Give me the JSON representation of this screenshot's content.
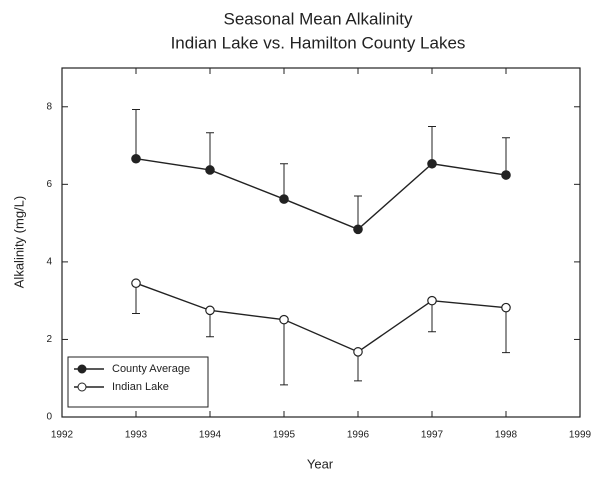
{
  "chart_data": {
    "type": "line",
    "title": "Seasonal Mean Alkalinity",
    "subtitle": "Indian Lake vs. Hamilton County Lakes",
    "x_label": "Year",
    "y_label": "Alkalinity (mg/L)",
    "x": [
      1993,
      1994,
      1995,
      1996,
      1997,
      1998
    ],
    "xlim": [
      1992,
      1999
    ],
    "xticks": [
      1992,
      1993,
      1994,
      1995,
      1996,
      1997,
      1998,
      1999
    ],
    "ylim": [
      0,
      9
    ],
    "yticks": [
      0,
      2,
      4,
      6,
      8
    ],
    "legend": "lower left",
    "series": [
      {
        "name": "County Average",
        "color": "#222222",
        "marker": "filled",
        "error_side": "up",
        "values": [
          6.66,
          6.37,
          5.62,
          4.84,
          6.53,
          6.24
        ],
        "errors": [
          1.27,
          0.96,
          0.91,
          0.86,
          0.96,
          0.96
        ]
      },
      {
        "name": "Indian Lake",
        "color": "#222222",
        "marker": "open",
        "error_side": "down",
        "values": [
          3.45,
          2.75,
          2.51,
          1.68,
          3.0,
          2.82
        ],
        "errors": [
          0.78,
          0.68,
          1.68,
          0.75,
          0.8,
          1.16
        ]
      }
    ]
  }
}
